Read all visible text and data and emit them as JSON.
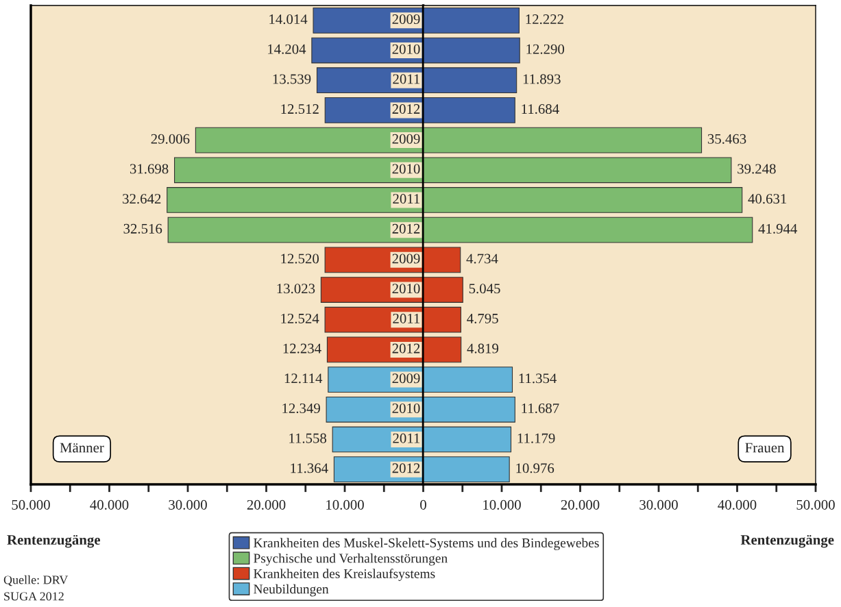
{
  "chart_data": [
    {
      "type": "bar",
      "orientation": "horizontal",
      "categories": [
        "2009",
        "2010",
        "2011",
        "2012",
        "2009",
        "2010",
        "2011",
        "2012",
        "2009",
        "2010",
        "2011",
        "2012",
        "2009",
        "2010",
        "2011",
        "2012"
      ],
      "xlim": [
        50000,
        0
      ],
      "xticks": [
        {
          "value": 50000,
          "label": "50.000"
        },
        {
          "value": 45000,
          "label": null
        },
        {
          "value": 40000,
          "label": "40.000"
        },
        {
          "value": 35000,
          "label": null
        },
        {
          "value": 30000,
          "label": "30.000"
        },
        {
          "value": 25000,
          "label": null
        },
        {
          "value": 20000,
          "label": "20.000"
        },
        {
          "value": 15000,
          "label": null
        },
        {
          "value": 10000,
          "label": "10.000"
        },
        {
          "value": 5000,
          "label": null
        }
      ],
      "series": [
        {
          "name": "Krankheiten des Muskel-Skelett-Systems und des Bindegewebes",
          "color": "#3f62a8",
          "values": [
            14014,
            14204,
            13539,
            12512,
            null,
            null,
            null,
            null,
            null,
            null,
            null,
            null,
            null,
            null,
            null,
            null
          ],
          "value_labels": [
            "14.014",
            "14.204",
            "13.539",
            "12.512",
            null,
            null,
            null,
            null,
            null,
            null,
            null,
            null,
            null,
            null,
            null,
            null
          ]
        },
        {
          "name": "Psychische und Verhaltensstörungen",
          "color": "#7dbb6f",
          "values": [
            null,
            null,
            null,
            null,
            29006,
            31698,
            32642,
            32516,
            null,
            null,
            null,
            null,
            null,
            null,
            null,
            null
          ],
          "value_labels": [
            null,
            null,
            null,
            null,
            "29.006",
            "31.698",
            "32.642",
            "32.516",
            null,
            null,
            null,
            null,
            null,
            null,
            null,
            null
          ]
        },
        {
          "name": "Krankheiten des Kreislaufsystems",
          "color": "#d4401e",
          "values": [
            null,
            null,
            null,
            null,
            null,
            null,
            null,
            null,
            12520,
            13023,
            12524,
            12234,
            null,
            null,
            null,
            null
          ],
          "value_labels": [
            null,
            null,
            null,
            null,
            null,
            null,
            null,
            null,
            "12.520",
            "13.023",
            "12.524",
            "12.234",
            null,
            null,
            null,
            null
          ]
        },
        {
          "name": "Neubildungen",
          "color": "#62b3d9",
          "values": [
            null,
            null,
            null,
            null,
            null,
            null,
            null,
            null,
            null,
            null,
            null,
            null,
            12114,
            12349,
            11558,
            11364
          ],
          "value_labels": [
            null,
            null,
            null,
            null,
            null,
            null,
            null,
            null,
            null,
            null,
            null,
            null,
            "12.114",
            "12.349",
            "11.558",
            "11.364"
          ]
        }
      ],
      "legend": "bottom",
      "annotations": [
        "Männer",
        "Rentenzugänge",
        "Quelle: DRV",
        "SUGA 2012"
      ]
    },
    {
      "type": "bar",
      "orientation": "horizontal",
      "categories": [
        "2009",
        "2010",
        "2011",
        "2012",
        "2009",
        "2010",
        "2011",
        "2012",
        "2009",
        "2010",
        "2011",
        "2012",
        "2009",
        "2010",
        "2011",
        "2012"
      ],
      "tick_labels": "x",
      "xlim": [
        0,
        50000
      ],
      "xticks": [
        0,
        {
          "value": 5000,
          "label": null
        },
        {
          "value": 10000,
          "label": "10.000"
        },
        {
          "value": 15000,
          "label": null
        },
        {
          "value": 20000,
          "label": "20.000"
        },
        {
          "value": 25000,
          "label": null
        },
        {
          "value": 30000,
          "label": "30.000"
        },
        {
          "value": 35000,
          "label": null
        },
        {
          "value": 40000,
          "label": "40.000"
        },
        {
          "value": 45000,
          "label": null
        },
        {
          "value": 50000,
          "label": "50.000"
        }
      ],
      "series": [
        {
          "color": "#3f62a8",
          "values": [
            12222,
            12290,
            11893,
            11684,
            null,
            null,
            null,
            null,
            null,
            null,
            null,
            null,
            null,
            null,
            null,
            null
          ],
          "value_labels": [
            "12.222",
            "12.290",
            "11.893",
            "11.684",
            null,
            null,
            null,
            null,
            null,
            null,
            null,
            null,
            null,
            null,
            null,
            null
          ]
        },
        {
          "color": "#7dbb6f",
          "values": [
            null,
            null,
            null,
            null,
            35463,
            39248,
            40631,
            41944,
            null,
            null,
            null,
            null,
            null,
            null,
            null,
            null
          ],
          "value_labels": [
            null,
            null,
            null,
            null,
            "35.463",
            "39.248",
            "40.631",
            "41.944",
            null,
            null,
            null,
            null,
            null,
            null,
            null,
            null
          ]
        },
        {
          "color": "#d4401e",
          "values": [
            null,
            null,
            null,
            null,
            null,
            null,
            null,
            null,
            4734,
            5045,
            4795,
            4819,
            null,
            null,
            null,
            null
          ],
          "value_labels": [
            null,
            null,
            null,
            null,
            null,
            null,
            null,
            null,
            "4.734",
            "5.045",
            "4.795",
            "4.819",
            null,
            null,
            null,
            null
          ]
        },
        {
          "color": "#62b3d9",
          "values": [
            null,
            null,
            null,
            null,
            null,
            null,
            null,
            null,
            null,
            null,
            null,
            null,
            11354,
            11687,
            11179,
            10976
          ],
          "value_labels": [
            null,
            null,
            null,
            null,
            null,
            null,
            null,
            null,
            null,
            null,
            null,
            null,
            "11.354",
            "11.687",
            "11.179",
            "10.976"
          ]
        }
      ],
      "annotations": [
        "Frauen",
        "Rentenzugänge"
      ]
    }
  ]
}
